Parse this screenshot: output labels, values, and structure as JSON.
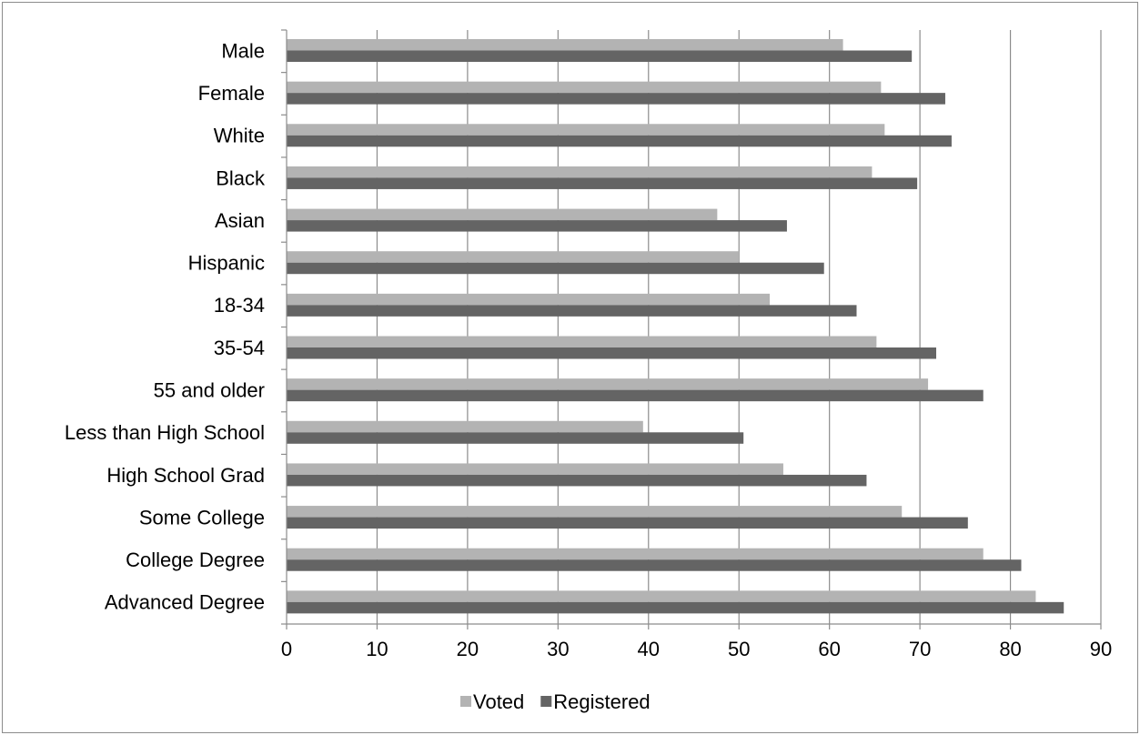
{
  "chart_data": {
    "type": "bar",
    "orientation": "horizontal",
    "categories": [
      "Male",
      "Female",
      "White ",
      "Black",
      "Asian",
      "Hispanic",
      "18-34",
      "35-54",
      "55 and older",
      "Less than High School",
      "High School Grad",
      "Some College",
      "College Degree",
      "Advanced Degree"
    ],
    "series": [
      {
        "name": "Voted",
        "color": "#b3b3b3",
        "values": [
          61.5,
          65.7,
          66.1,
          64.7,
          47.6,
          50.0,
          53.4,
          65.2,
          70.9,
          39.4,
          54.9,
          68.0,
          77.0,
          82.8
        ]
      },
      {
        "name": "Registered",
        "color": "#646464",
        "values": [
          69.1,
          72.8,
          73.5,
          69.7,
          55.3,
          59.4,
          63.0,
          71.8,
          77.0,
          50.5,
          64.1,
          75.3,
          81.2,
          85.9
        ]
      }
    ],
    "xlim": [
      0,
      90
    ],
    "xticks": [
      "0",
      "10",
      "20",
      "30",
      "40",
      "50",
      "60",
      "70",
      "80",
      "90"
    ],
    "title": "",
    "xlabel": "",
    "ylabel": "",
    "grid": "vertical",
    "legend_position": "bottom"
  }
}
